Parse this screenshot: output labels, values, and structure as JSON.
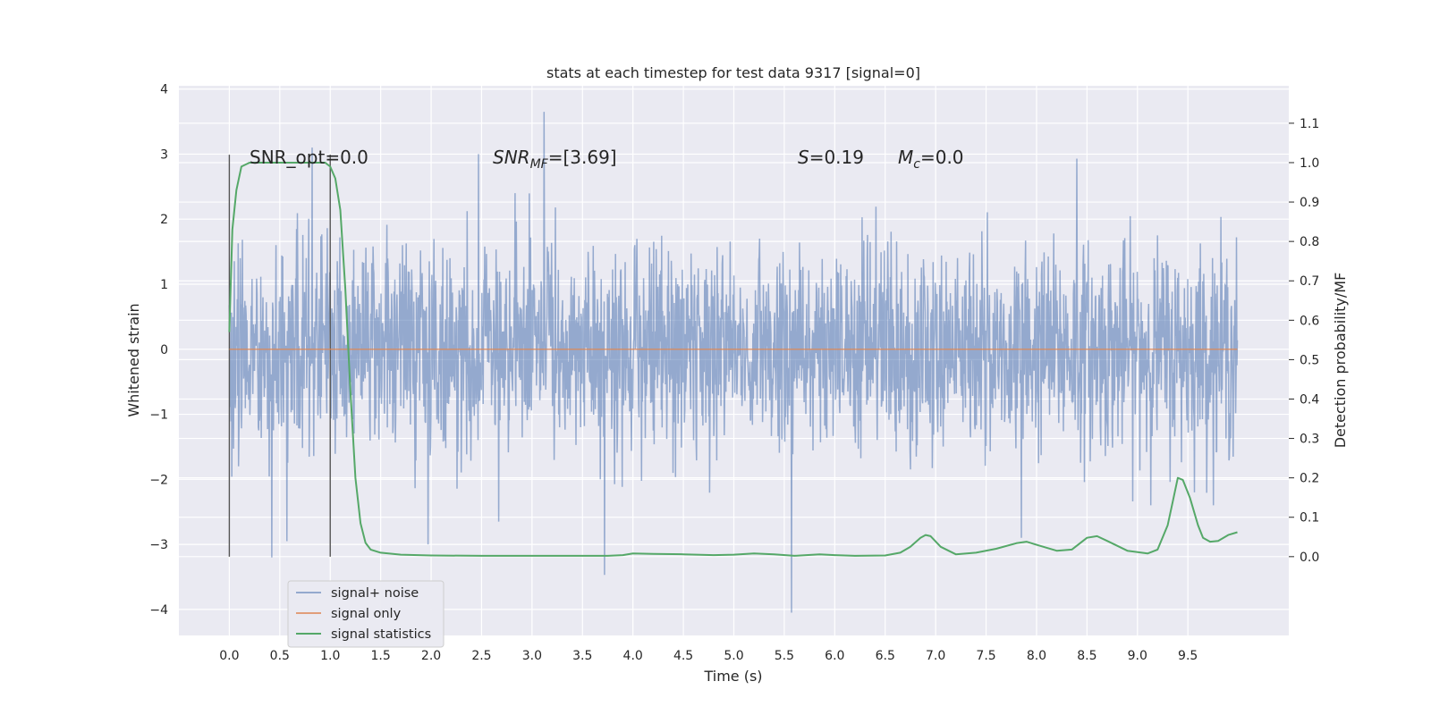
{
  "chart_data": {
    "type": "line",
    "title": "stats at each timestep for test data 9317 [signal=0]",
    "xlabel": "Time (s)",
    "ylabel_left": "Whitened strain",
    "ylabel_right": "Detection probability/MF",
    "xlim": [
      -0.5,
      10.5
    ],
    "ylim_left": [
      -4.4,
      4.05
    ],
    "ylim_right": [
      -0.2,
      1.195
    ],
    "x_ticks": [
      "0.0",
      "0.5",
      "1.0",
      "1.5",
      "2.0",
      "2.5",
      "3.0",
      "3.5",
      "4.0",
      "4.5",
      "5.0",
      "5.5",
      "6.0",
      "6.5",
      "7.0",
      "7.5",
      "8.0",
      "8.5",
      "9.0",
      "9.5"
    ],
    "y_ticks_left": [
      "−4",
      "−3",
      "−2",
      "−1",
      "0",
      "1",
      "2",
      "3",
      "4"
    ],
    "y_ticks_right": [
      "0.0",
      "0.1",
      "0.2",
      "0.3",
      "0.4",
      "0.5",
      "0.6",
      "0.7",
      "0.8",
      "0.9",
      "1.0",
      "1.1"
    ],
    "grid": true,
    "legend_position": "lower-left",
    "annotations": [
      {
        "key": "snr_opt",
        "text": "SNR_opt=0.0"
      },
      {
        "key": "snr_mf",
        "text": "SNR_MF=[3.69]"
      },
      {
        "key": "s",
        "text": "S=0.19"
      },
      {
        "key": "mc",
        "text": "M_c=0.0"
      }
    ],
    "vertical_markers": [
      0.0,
      1.0
    ],
    "series": [
      {
        "name": "signal+ noise",
        "axis": "left",
        "color": "#4c72b0",
        "x_range": [
          0.0,
          9.99
        ],
        "typical_amplitude": [
          -1.2,
          1.4
        ],
        "extremes": [
          {
            "x": 3.12,
            "y": 3.65
          },
          {
            "x": 0.82,
            "y": 3.1
          },
          {
            "x": 8.4,
            "y": 2.93
          },
          {
            "x": 2.47,
            "y": 3.0
          },
          {
            "x": 5.57,
            "y": -4.05
          },
          {
            "x": 3.72,
            "y": -3.47
          },
          {
            "x": 0.42,
            "y": -3.2
          },
          {
            "x": 0.57,
            "y": -2.95
          },
          {
            "x": 1.97,
            "y": -3.0
          },
          {
            "x": 7.85,
            "y": -2.9
          },
          {
            "x": 2.67,
            "y": -2.65
          }
        ]
      },
      {
        "name": "signal only",
        "axis": "left",
        "color": "#dd8452",
        "x": [
          0.0,
          9.99
        ],
        "y": [
          0.0,
          0.0
        ]
      },
      {
        "name": "signal statistics",
        "axis": "right",
        "color": "#55a868",
        "x": [
          0.0,
          0.03,
          0.07,
          0.12,
          0.2,
          0.3,
          0.5,
          0.7,
          0.85,
          0.95,
          1.0,
          1.05,
          1.1,
          1.15,
          1.2,
          1.25,
          1.3,
          1.35,
          1.4,
          1.5,
          1.7,
          2.0,
          2.5,
          3.0,
          3.5,
          3.75,
          3.9,
          4.0,
          4.2,
          4.5,
          4.8,
          5.0,
          5.2,
          5.4,
          5.6,
          5.85,
          6.0,
          6.2,
          6.5,
          6.65,
          6.75,
          6.85,
          6.9,
          6.95,
          7.05,
          7.2,
          7.4,
          7.6,
          7.8,
          7.9,
          8.0,
          8.2,
          8.35,
          8.5,
          8.6,
          8.7,
          8.9,
          9.1,
          9.2,
          9.3,
          9.35,
          9.4,
          9.45,
          9.52,
          9.6,
          9.65,
          9.72,
          9.8,
          9.9,
          9.99
        ],
        "y": [
          0.57,
          0.83,
          0.93,
          0.99,
          1.0,
          1.0,
          1.0,
          1.0,
          1.0,
          1.0,
          0.99,
          0.96,
          0.88,
          0.68,
          0.42,
          0.2,
          0.085,
          0.035,
          0.018,
          0.01,
          0.005,
          0.003,
          0.002,
          0.002,
          0.002,
          0.002,
          0.004,
          0.008,
          0.007,
          0.006,
          0.004,
          0.005,
          0.008,
          0.006,
          0.002,
          0.006,
          0.004,
          0.002,
          0.003,
          0.01,
          0.025,
          0.048,
          0.055,
          0.052,
          0.025,
          0.006,
          0.01,
          0.02,
          0.034,
          0.038,
          0.03,
          0.015,
          0.018,
          0.048,
          0.052,
          0.04,
          0.015,
          0.008,
          0.018,
          0.08,
          0.14,
          0.2,
          0.195,
          0.15,
          0.08,
          0.048,
          0.038,
          0.04,
          0.055,
          0.062
        ]
      }
    ]
  },
  "legend_items": [
    {
      "label": "signal+ noise",
      "color": "#4c72b0"
    },
    {
      "label": "signal only",
      "color": "#dd8452"
    },
    {
      "label": "signal statistics",
      "color": "#55a868"
    }
  ]
}
